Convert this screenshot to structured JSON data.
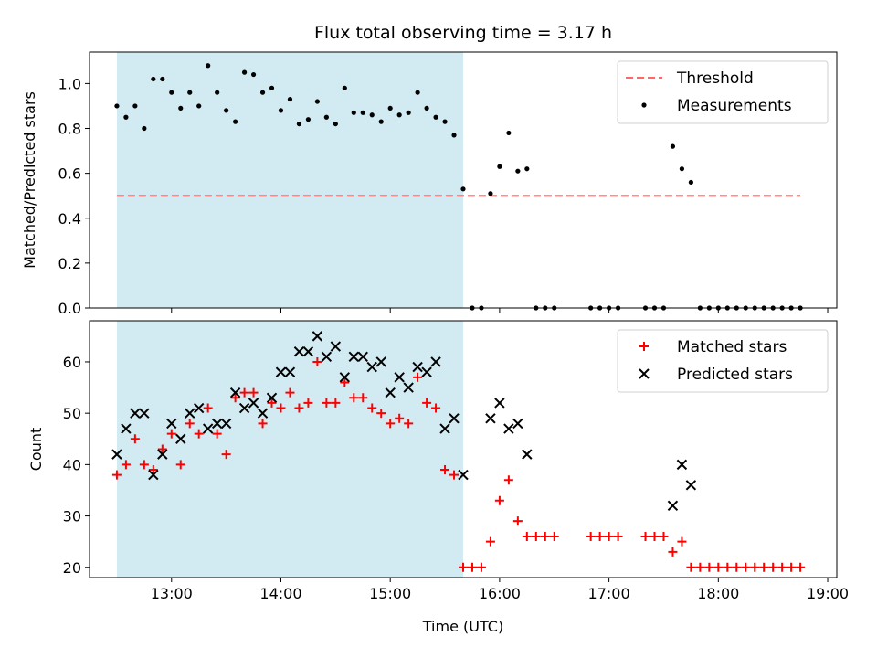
{
  "chart_data": [
    {
      "type": "scatter",
      "title": "Flux total observing time = 3.17 h",
      "xlabel": "",
      "ylabel": "Matched/Predicted stars",
      "xlim": [
        "12:15",
        "19:05"
      ],
      "ylim": [
        0,
        1.14
      ],
      "yticks": [
        "0.0",
        "0.2",
        "0.4",
        "0.6",
        "0.8",
        "1.0"
      ],
      "yticks_values": [
        0.0,
        0.2,
        0.4,
        0.6,
        0.8,
        1.0
      ],
      "xticks_values": [
        "13:00",
        "14:00",
        "15:00",
        "16:00",
        "17:00",
        "18:00",
        "19:00"
      ],
      "shaded_span": [
        "12:30",
        "15:40"
      ],
      "colors": {
        "span": "#add8e6",
        "threshold": "#ff6666",
        "points": "#000000"
      },
      "legend_position": "top-right",
      "threshold": {
        "name": "Threshold",
        "value": 0.5,
        "x_range": [
          "12:30",
          "18:45"
        ]
      },
      "series": [
        {
          "name": "Measurements",
          "marker": "dot",
          "x": [
            "12:30",
            "12:35",
            "12:40",
            "12:45",
            "12:50",
            "12:55",
            "13:00",
            "13:05",
            "13:10",
            "13:15",
            "13:20",
            "13:25",
            "13:30",
            "13:35",
            "13:40",
            "13:45",
            "13:50",
            "13:55",
            "14:00",
            "14:05",
            "14:10",
            "14:15",
            "14:20",
            "14:25",
            "14:30",
            "14:35",
            "14:40",
            "14:45",
            "14:50",
            "14:55",
            "15:00",
            "15:05",
            "15:10",
            "15:15",
            "15:20",
            "15:25",
            "15:30",
            "15:35",
            "15:40",
            "15:45",
            "15:50",
            "15:55",
            "16:00",
            "16:05",
            "16:10",
            "16:15",
            "16:20",
            "16:25",
            "16:30",
            "16:50",
            "16:55",
            "17:00",
            "17:05",
            "17:20",
            "17:25",
            "17:30",
            "17:35",
            "17:40",
            "17:45",
            "17:50",
            "17:55",
            "18:00",
            "18:05",
            "18:10",
            "18:15",
            "18:20",
            "18:25",
            "18:30",
            "18:35",
            "18:40",
            "18:45"
          ],
          "y": [
            0.9,
            0.85,
            0.9,
            0.8,
            1.02,
            1.02,
            0.96,
            0.89,
            0.96,
            0.9,
            1.08,
            0.96,
            0.88,
            0.83,
            1.05,
            1.04,
            0.96,
            0.98,
            0.88,
            0.93,
            0.82,
            0.84,
            0.92,
            0.85,
            0.82,
            0.98,
            0.87,
            0.87,
            0.86,
            0.83,
            0.89,
            0.86,
            0.87,
            0.96,
            0.89,
            0.85,
            0.83,
            0.77,
            0.53,
            0,
            0,
            0.51,
            0.63,
            0.78,
            0.61,
            0.62,
            0,
            0,
            0,
            0,
            0,
            0,
            0,
            0,
            0,
            0,
            0.72,
            0.62,
            0.56,
            0,
            0,
            0,
            0,
            0,
            0,
            0,
            0,
            0,
            0,
            0,
            0
          ]
        }
      ]
    },
    {
      "type": "scatter",
      "title": "",
      "xlabel": "Time (UTC)",
      "ylabel": "Count",
      "xlim": [
        "12:15",
        "19:05"
      ],
      "ylim": [
        18,
        68
      ],
      "yticks": [
        "20",
        "30",
        "40",
        "50",
        "60"
      ],
      "yticks_values": [
        20,
        30,
        40,
        50,
        60
      ],
      "xticks": [
        "13:00",
        "14:00",
        "15:00",
        "16:00",
        "17:00",
        "18:00",
        "19:00"
      ],
      "shaded_span": [
        "12:30",
        "15:40"
      ],
      "colors": {
        "span": "#add8e6",
        "matched": "#ff0000",
        "predicted": "#000000"
      },
      "legend_position": "top-right",
      "series": [
        {
          "name": "Matched stars",
          "marker": "plus",
          "x": [
            "12:30",
            "12:35",
            "12:40",
            "12:45",
            "12:50",
            "12:55",
            "13:00",
            "13:05",
            "13:10",
            "13:15",
            "13:20",
            "13:25",
            "13:30",
            "13:35",
            "13:40",
            "13:45",
            "13:50",
            "13:55",
            "14:00",
            "14:05",
            "14:10",
            "14:15",
            "14:20",
            "14:25",
            "14:30",
            "14:35",
            "14:40",
            "14:45",
            "14:50",
            "14:55",
            "15:00",
            "15:05",
            "15:10",
            "15:15",
            "15:20",
            "15:25",
            "15:30",
            "15:35",
            "15:40",
            "15:45",
            "15:50",
            "15:55",
            "16:00",
            "16:05",
            "16:10",
            "16:15",
            "16:20",
            "16:25",
            "16:30",
            "16:50",
            "16:55",
            "17:00",
            "17:05",
            "17:20",
            "17:25",
            "17:30",
            "17:35",
            "17:40",
            "17:45",
            "17:50",
            "17:55",
            "18:00",
            "18:05",
            "18:10",
            "18:15",
            "18:20",
            "18:25",
            "18:30",
            "18:35",
            "18:40",
            "18:45"
          ],
          "y": [
            38,
            40,
            45,
            40,
            39,
            43,
            46,
            40,
            48,
            46,
            51,
            46,
            42,
            53,
            54,
            54,
            48,
            52,
            51,
            54,
            51,
            52,
            60,
            52,
            52,
            56,
            53,
            53,
            51,
            50,
            48,
            49,
            48,
            57,
            52,
            51,
            39,
            38,
            20,
            20,
            20,
            25,
            33,
            37,
            29,
            26,
            26,
            26,
            26,
            26,
            26,
            26,
            26,
            26,
            26,
            26,
            23,
            25,
            20,
            20,
            20,
            20,
            20,
            20,
            20,
            20,
            20,
            20,
            20,
            20,
            20
          ]
        },
        {
          "name": "Predicted stars",
          "marker": "x",
          "x": [
            "12:30",
            "12:35",
            "12:40",
            "12:45",
            "12:50",
            "12:55",
            "13:00",
            "13:05",
            "13:10",
            "13:15",
            "13:20",
            "13:25",
            "13:30",
            "13:35",
            "13:40",
            "13:45",
            "13:50",
            "13:55",
            "14:00",
            "14:05",
            "14:10",
            "14:15",
            "14:20",
            "14:25",
            "14:30",
            "14:35",
            "14:40",
            "14:45",
            "14:50",
            "14:55",
            "15:00",
            "15:05",
            "15:10",
            "15:15",
            "15:20",
            "15:25",
            "15:30",
            "15:35",
            "15:40",
            "15:55",
            "16:00",
            "16:05",
            "16:10",
            "16:15",
            "17:35",
            "17:40",
            "17:45"
          ],
          "y": [
            42,
            47,
            50,
            50,
            38,
            42,
            48,
            45,
            50,
            51,
            47,
            48,
            48,
            54,
            51,
            52,
            50,
            53,
            58,
            58,
            62,
            62,
            65,
            61,
            63,
            57,
            61,
            61,
            59,
            60,
            54,
            57,
            55,
            59,
            58,
            60,
            47,
            49,
            38,
            49,
            52,
            47,
            48,
            42,
            32,
            40,
            36
          ]
        }
      ]
    }
  ]
}
